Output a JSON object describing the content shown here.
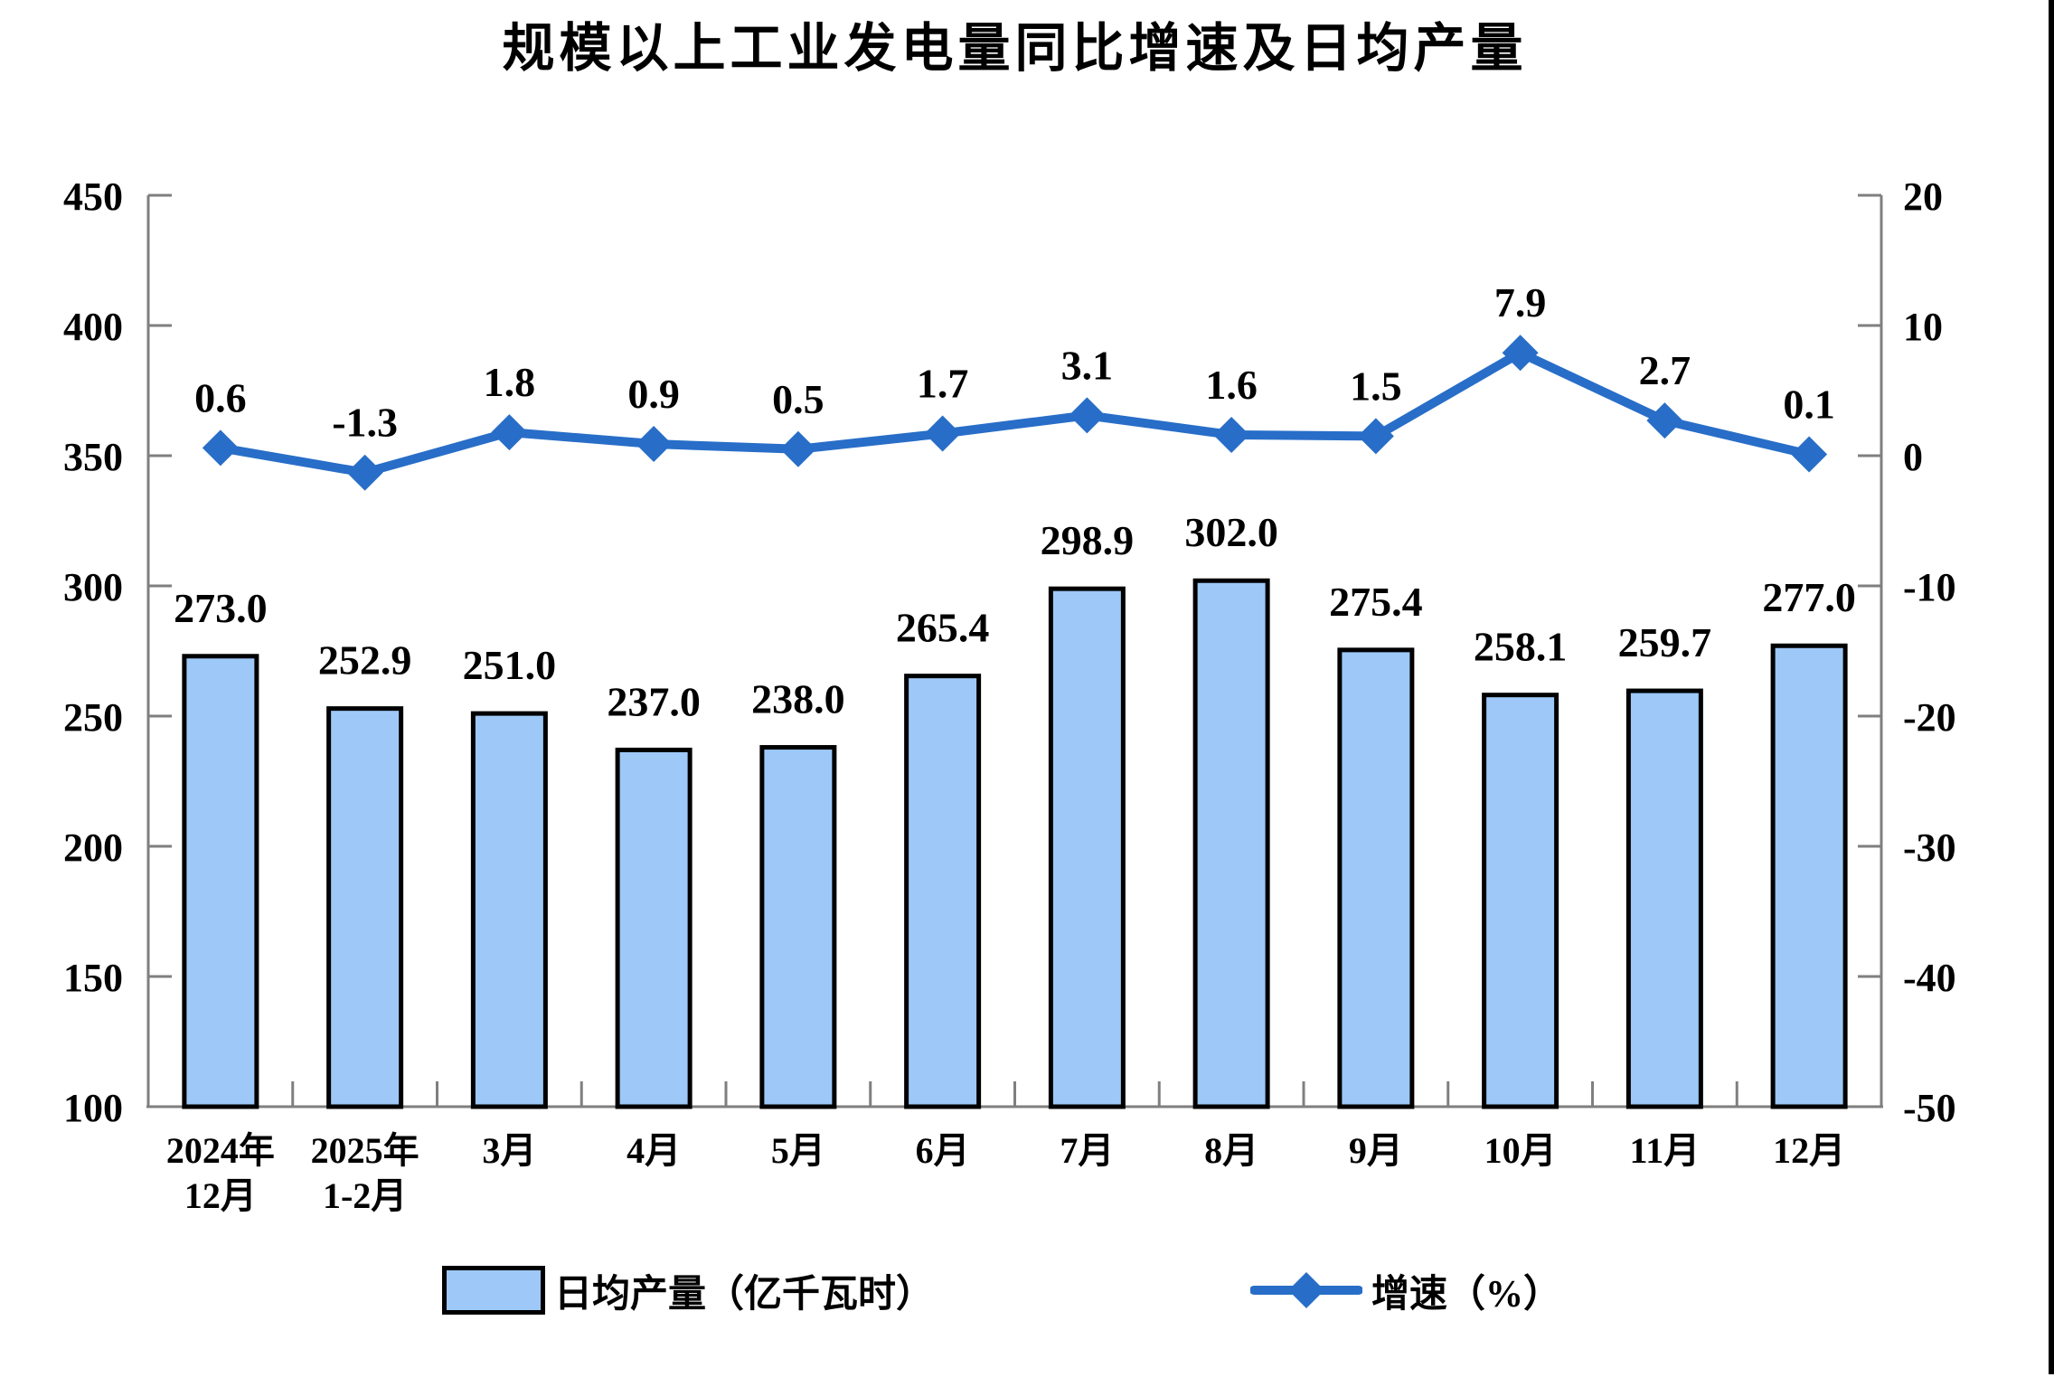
{
  "chart_data": {
    "type": "bar+line",
    "title": "规模以上工业发电量同比增速及日均产量",
    "categories": [
      "2024年\n12月",
      "2025年\n1-2月",
      "3月",
      "4月",
      "5月",
      "6月",
      "7月",
      "8月",
      "9月",
      "10月",
      "11月",
      "12月"
    ],
    "series": [
      {
        "name": "日均产量（亿千瓦时）",
        "type": "bar",
        "axis": "left",
        "values": [
          273.0,
          252.9,
          251.0,
          237.0,
          238.0,
          265.4,
          298.9,
          302.0,
          275.4,
          258.1,
          259.7,
          277.0
        ],
        "labels": [
          "273.0",
          "252.9",
          "251.0",
          "237.0",
          "238.0",
          "265.4",
          "298.9",
          "302.0",
          "275.4",
          "258.1",
          "259.7",
          "277.0"
        ],
        "fill": "#9dc8f7",
        "stroke": "#000000"
      },
      {
        "name": "增速（%）",
        "type": "line",
        "axis": "right",
        "values": [
          0.6,
          -1.3,
          1.8,
          0.9,
          0.5,
          1.7,
          3.1,
          1.6,
          1.5,
          7.9,
          2.7,
          0.1
        ],
        "labels": [
          "0.6",
          "-1.3",
          "1.8",
          "0.9",
          "0.5",
          "1.7",
          "3.1",
          "1.6",
          "1.5",
          "7.9",
          "2.7",
          "0.1"
        ],
        "color": "#286ec8",
        "marker": "diamond"
      }
    ],
    "left_axis": {
      "min": 100,
      "max": 450,
      "ticks": [
        450,
        400,
        350,
        300,
        250,
        200,
        150,
        100
      ]
    },
    "right_axis": {
      "min": -50,
      "max": 20,
      "ticks": [
        20,
        10,
        0,
        -10,
        -20,
        -30,
        -40,
        -50
      ]
    },
    "axis_color": "#7f7f7f",
    "label_color": "#000000",
    "grid": false,
    "legend_position": "bottom"
  }
}
